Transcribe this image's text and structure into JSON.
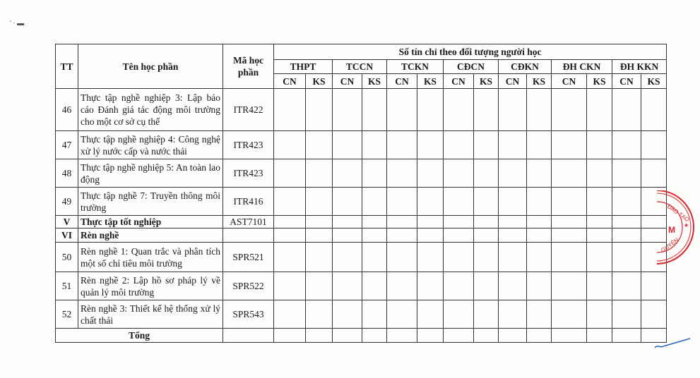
{
  "table": {
    "headers": {
      "tt": "TT",
      "name": "Tên học phần",
      "code": "Mã học phần",
      "credits_group": "Số tín chỉ theo đối tượng người học",
      "groups": [
        "THPT",
        "TCCN",
        "TCKN",
        "CĐCN",
        "CĐKN",
        "ĐH CKN",
        "ĐH KKN"
      ],
      "sub": [
        "CN",
        "KS"
      ]
    },
    "rows": [
      {
        "tt": "46",
        "name": "Thực tập nghề nghiệp 3: Lập báo cáo Đánh giá tác động môi trường cho một cơ sở cụ thể",
        "code": "ITR422",
        "bold": false
      },
      {
        "tt": "47",
        "name": "Thực tập nghề nghiệp 4: Công nghệ xử lý nước cấp và nước thải",
        "code": "ITR423",
        "bold": false
      },
      {
        "tt": "48",
        "name": "Thực tập nghề nghiệp 5: An toàn lao động",
        "code": "ITR423",
        "bold": false
      },
      {
        "tt": "49",
        "name": "Thực tập nghề 7: Truyền thông môi trường",
        "code": "ITR416",
        "bold": false
      },
      {
        "tt": "V",
        "name": "Thực tập tốt nghiệp",
        "code": "AST7101",
        "bold": true
      },
      {
        "tt": "VI",
        "name": "Rèn nghề",
        "code": "",
        "bold": true
      },
      {
        "tt": "50",
        "name": "Rèn nghề 1: Quan trắc và phân tích một số chỉ tiêu môi trường",
        "code": "SPR521",
        "bold": false
      },
      {
        "tt": "51",
        "name": "Rèn nghề 2: Lập hồ sơ pháp lý về quản lý môi trường",
        "code": "SPR522",
        "bold": false
      },
      {
        "tt": "52",
        "name": "Rèn nghề 3: Thiết kế hệ thống xử lý chất thải",
        "code": "SPR543",
        "bold": false
      }
    ],
    "total_label": "Tổng"
  },
  "stamp": {
    "text": "ĐÀO TẠO ... M ... NGUYÊN",
    "color": "#d9262e"
  },
  "pen_mark_color": "#2a5fc0"
}
